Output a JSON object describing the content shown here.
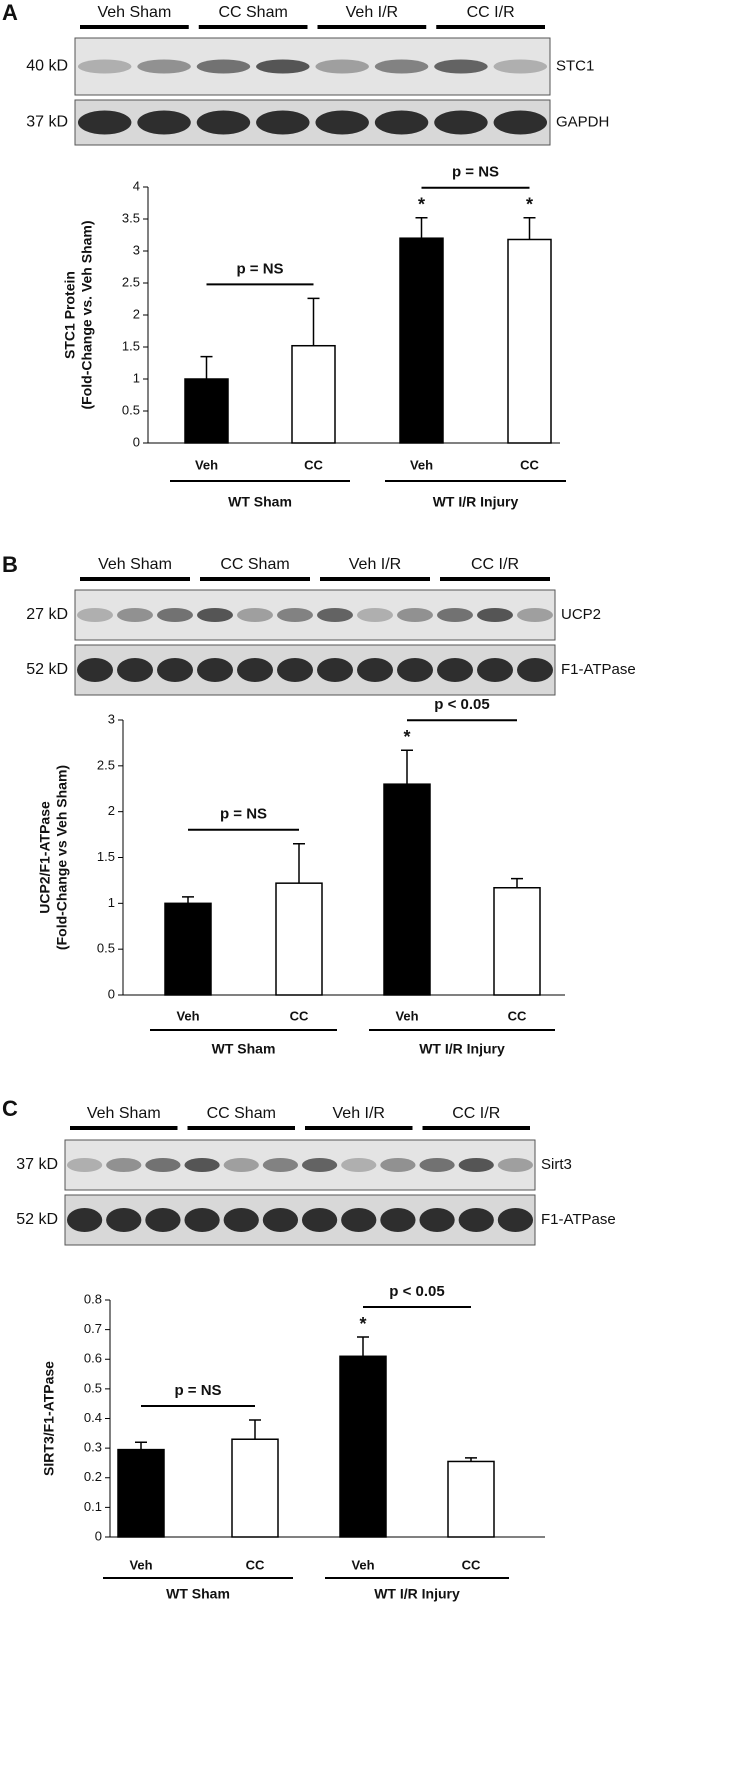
{
  "chart_data": [
    {
      "type": "bar",
      "panel": "A",
      "blot": {
        "groups": [
          "Veh Sham",
          "CC Sham",
          "Veh I/R",
          "CC I/R"
        ],
        "bands": [
          {
            "size": "40 kD",
            "name": "STC1"
          },
          {
            "size": "37 kD",
            "name": "GAPDH"
          }
        ]
      },
      "y_label": [
        "STC1 Protein",
        "(Fold-Change vs. Veh Sham)"
      ],
      "categories": [
        "Veh",
        "CC",
        "Veh",
        "CC"
      ],
      "groups": [
        "WT Sham",
        "WT I/R Injury"
      ],
      "series": [
        {
          "values": [
            1.0,
            1.52,
            3.2,
            3.18
          ],
          "errors": [
            0.35,
            0.74,
            0.32,
            0.34
          ],
          "colors": [
            "#000000",
            "#ffffff",
            "#000000",
            "#ffffff"
          ]
        }
      ],
      "significance": [
        null,
        null,
        "*",
        "*"
      ],
      "brackets": [
        {
          "label": "p = NS",
          "categories": [
            0,
            1
          ]
        },
        {
          "label": "p = NS",
          "categories": [
            2,
            3
          ]
        }
      ],
      "ylim": [
        0,
        4
      ],
      "yticks": [
        0,
        0.5,
        1,
        1.5,
        2,
        2.5,
        3,
        3.5,
        4
      ]
    },
    {
      "type": "bar",
      "panel": "B",
      "blot": {
        "groups": [
          "Veh Sham",
          "CC Sham",
          "Veh I/R",
          "CC I/R"
        ],
        "bands": [
          {
            "size": "27 kD",
            "name": "UCP2"
          },
          {
            "size": "52 kD",
            "name": "F1-ATPase"
          }
        ]
      },
      "y_label": [
        "UCP2/F1-ATPase",
        "(Fold-Change vs Veh Sham)"
      ],
      "categories": [
        "Veh",
        "CC",
        "Veh",
        "CC"
      ],
      "groups": [
        "WT Sham",
        "WT I/R Injury"
      ],
      "series": [
        {
          "values": [
            1.0,
            1.22,
            2.3,
            1.17
          ],
          "errors": [
            0.07,
            0.43,
            0.37,
            0.1
          ],
          "colors": [
            "#000000",
            "#ffffff",
            "#000000",
            "#ffffff"
          ]
        }
      ],
      "significance": [
        null,
        null,
        "*",
        null
      ],
      "brackets": [
        {
          "label": "p = NS",
          "categories": [
            0,
            1
          ]
        },
        {
          "label": "p < 0.05",
          "categories": [
            2,
            3
          ]
        }
      ],
      "ylim": [
        0,
        3
      ],
      "yticks": [
        0,
        0.5,
        1,
        1.5,
        2,
        2.5,
        3
      ]
    },
    {
      "type": "bar",
      "panel": "C",
      "blot": {
        "groups": [
          "Veh Sham",
          "CC Sham",
          "Veh I/R",
          "CC I/R"
        ],
        "bands": [
          {
            "size": "37 kD",
            "name": "Sirt3"
          },
          {
            "size": "52 kD",
            "name": "F1-ATPase"
          }
        ]
      },
      "y_label": [
        "SIRT3/F1-ATPase"
      ],
      "categories": [
        "Veh",
        "CC",
        "Veh",
        "CC"
      ],
      "groups": [
        "WT Sham",
        "WT I/R Injury"
      ],
      "series": [
        {
          "values": [
            0.295,
            0.33,
            0.61,
            0.255
          ],
          "errors": [
            0.025,
            0.065,
            0.065,
            0.012
          ],
          "colors": [
            "#000000",
            "#ffffff",
            "#000000",
            "#ffffff"
          ]
        }
      ],
      "significance": [
        null,
        null,
        "*",
        null
      ],
      "brackets": [
        {
          "label": "p = NS",
          "categories": [
            0,
            1
          ]
        },
        {
          "label": "p < 0.05",
          "categories": [
            2,
            3
          ]
        }
      ],
      "ylim": [
        0,
        0.8
      ],
      "yticks": [
        0,
        0.1,
        0.2,
        0.3,
        0.4,
        0.5,
        0.6,
        0.7,
        0.8
      ]
    }
  ]
}
